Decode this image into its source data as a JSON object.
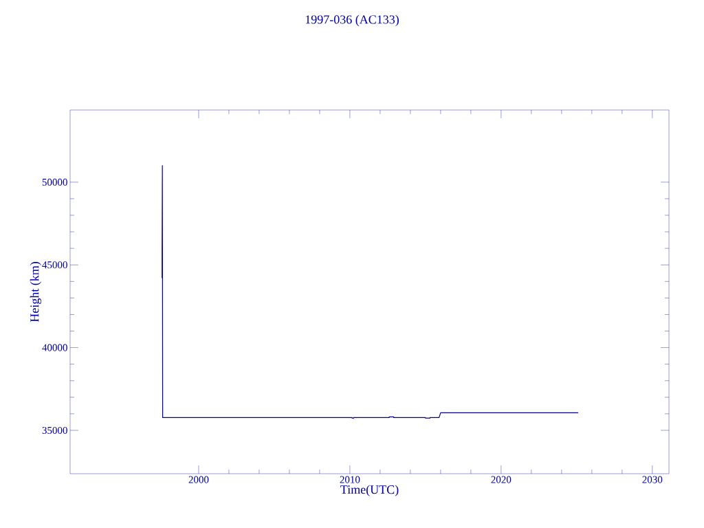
{
  "chart_data": {
    "type": "line",
    "title": "1997-036 (AC133)",
    "xlabel": "Time(UTC)",
    "ylabel": "Height (km)",
    "xlim": [
      1991.5,
      2031.1
    ],
    "ylim": [
      32380,
      54360
    ],
    "xticks": [
      2000,
      2010,
      2020,
      2030
    ],
    "yticks": [
      35000,
      40000,
      45000,
      50000
    ],
    "series": [
      {
        "color": "#00008b",
        "x": [
          1997.58,
          1997.58,
          1997.6,
          1997.62,
          2010.15,
          2010.15,
          2010.25,
          2010.25,
          2012.6,
          2012.6,
          2012.9,
          2012.9,
          2015.0,
          2015.0,
          2015.3,
          2015.3,
          2015.9,
          2016.0,
          2025.1
        ],
        "values": [
          44200,
          45700,
          51000,
          35770,
          35770,
          35740,
          35740,
          35770,
          35770,
          35810,
          35810,
          35770,
          35770,
          35740,
          35740,
          35770,
          35770,
          36060,
          36060
        ]
      }
    ]
  }
}
